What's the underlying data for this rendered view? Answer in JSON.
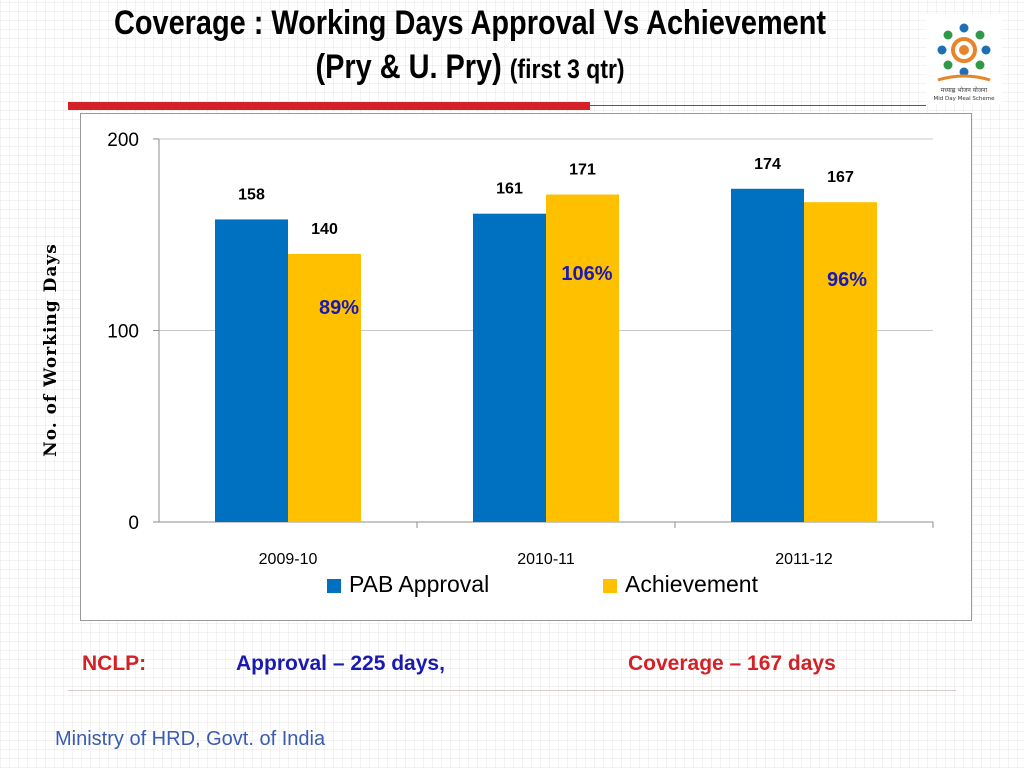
{
  "slide": {
    "title_line1": "Coverage : Working Days Approval Vs Achievement",
    "title_line2_main": "(Pry & U. Pry)",
    "title_line2_small": "(first 3 qtr)",
    "logo_text": "मध्याह्न भोजन योजना",
    "logo_subtext": "Mid Day Meal Scheme",
    "footer": {
      "nclp_label": "NCLP:",
      "approval_text": "Approval – 225 days,",
      "coverage_text": "Coverage – 167 days"
    },
    "ministry": "Ministry of HRD, Govt. of India"
  },
  "colors": {
    "accent_red": "#d42027",
    "approval_blue": "#0070c0",
    "achievement_yellow": "#ffc000",
    "percent_text": "#1a1ab0"
  },
  "chart_data": {
    "type": "bar",
    "categories": [
      "2009-10",
      "2010-11",
      "2011-12"
    ],
    "series": [
      {
        "name": "PAB Approval",
        "values": [
          158,
          161,
          174
        ],
        "color": "#0070c0"
      },
      {
        "name": "Achievement",
        "values": [
          140,
          171,
          167
        ],
        "color": "#ffc000"
      }
    ],
    "percent_labels": [
      "89%",
      "106%",
      "96%"
    ],
    "ylabel": "No. of Working Days",
    "yticks": [
      0,
      100,
      200
    ],
    "ylim": [
      0,
      200
    ],
    "grid": true,
    "legend_position": "bottom"
  }
}
